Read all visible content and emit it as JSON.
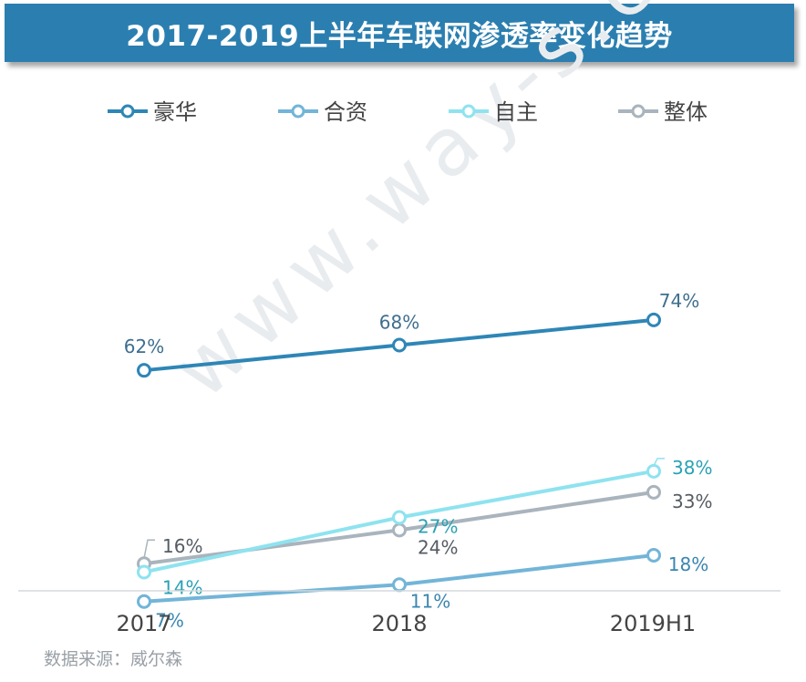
{
  "title": "2017-2019上半年车联网渗透率变化趋势",
  "source": "数据来源：威尔森",
  "watermark": "www.way-s.cn",
  "chart_data": {
    "type": "line",
    "title": "2017-2019上半年车联网渗透率变化趋势",
    "categories": [
      "2017",
      "2018",
      "2019H1"
    ],
    "ylim": [
      0,
      80
    ],
    "grid": false,
    "legend_position": "top",
    "series": [
      {
        "name": "豪华",
        "values": [
          62,
          68,
          74
        ],
        "labels": [
          "62%",
          "68%",
          "74%"
        ],
        "color": "#2e86b6",
        "label_color": "#3f6f8e"
      },
      {
        "name": "合资",
        "values": [
          7,
          11,
          18
        ],
        "labels": [
          "7%",
          "11%",
          "18%"
        ],
        "color": "#72b5d8",
        "label_color": "#3a86b0"
      },
      {
        "name": "自主",
        "values": [
          14,
          27,
          38
        ],
        "labels": [
          "14%",
          "27%",
          "38%"
        ],
        "color": "#8ee3ef",
        "label_color": "#2aa1b5"
      },
      {
        "name": "整体",
        "values": [
          16,
          24,
          33
        ],
        "labels": [
          "16%",
          "24%",
          "33%"
        ],
        "color": "#a9b4bd",
        "label_color": "#555c63"
      }
    ]
  }
}
